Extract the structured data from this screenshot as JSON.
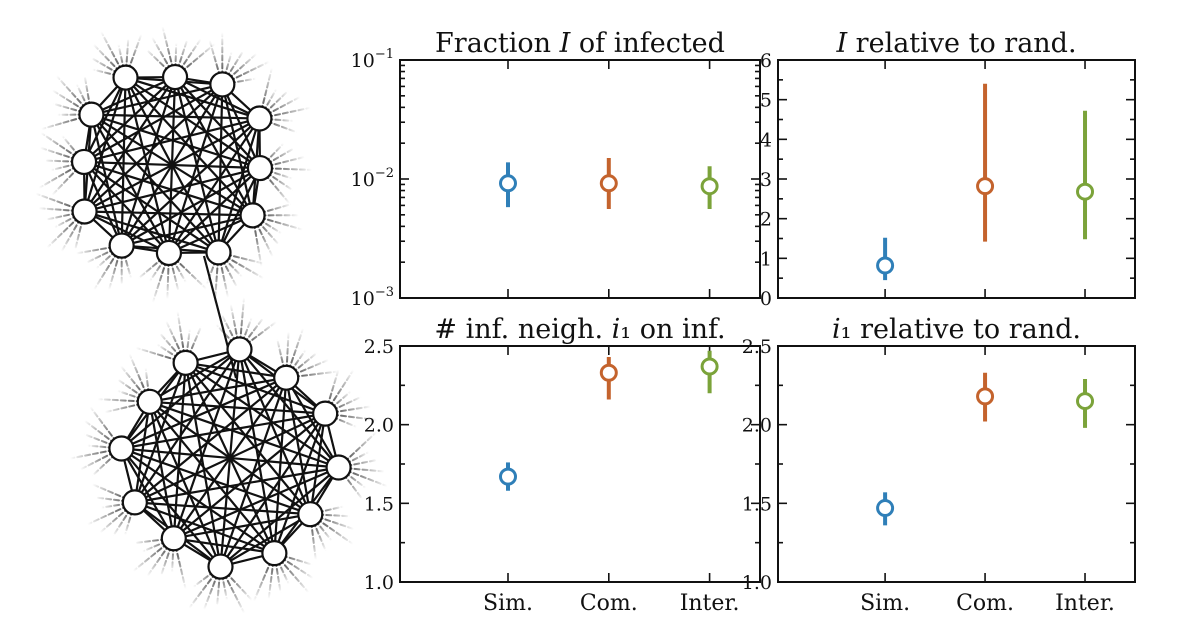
{
  "colors": {
    "Sim.": "#2f7fb8",
    "Com.": "#c4632d",
    "Inter.": "#7ba33a"
  },
  "chart_data": [
    {
      "type": "scatter",
      "panel": "top-left",
      "title": "Fraction 𝐼 of infected",
      "scale": "log",
      "ylim": [
        0.001,
        0.1
      ],
      "yticks": [
        {
          "value": 0.1,
          "base": "10",
          "exp": "−1"
        },
        {
          "value": 0.01,
          "base": "10",
          "exp": "−2"
        },
        {
          "value": 0.001,
          "base": "10",
          "exp": "−3"
        }
      ],
      "categories": [
        "Sim.",
        "Com.",
        "Inter."
      ],
      "show_xticks": false,
      "points": [
        {
          "category": "Sim.",
          "value": 0.0092,
          "lower": 0.0058,
          "upper": 0.0138
        },
        {
          "category": "Com.",
          "value": 0.0092,
          "lower": 0.0056,
          "upper": 0.015
        },
        {
          "category": "Inter.",
          "value": 0.0087,
          "lower": 0.0056,
          "upper": 0.0128
        }
      ]
    },
    {
      "type": "scatter",
      "panel": "top-right",
      "title": "𝐼 relative to rand.",
      "scale": "linear",
      "ylim": [
        0,
        6
      ],
      "yticks": [
        {
          "value": 6,
          "label": "6"
        },
        {
          "value": 5,
          "label": "5"
        },
        {
          "value": 4,
          "label": "4"
        },
        {
          "value": 3,
          "label": "3"
        },
        {
          "value": 2,
          "label": "2"
        },
        {
          "value": 1,
          "label": "1"
        },
        {
          "value": 0,
          "label": "0"
        }
      ],
      "categories": [
        "Sim.",
        "Com.",
        "Inter."
      ],
      "show_xticks": false,
      "points": [
        {
          "category": "Sim.",
          "value": 0.82,
          "lower": 0.45,
          "upper": 1.52
        },
        {
          "category": "Com.",
          "value": 2.82,
          "lower": 1.42,
          "upper": 5.4
        },
        {
          "category": "Inter.",
          "value": 2.68,
          "lower": 1.48,
          "upper": 4.72
        }
      ]
    },
    {
      "type": "scatter",
      "panel": "bottom-left",
      "title": "# inf. neigh. 𝑖₁ on inf.",
      "scale": "linear",
      "ylim": [
        1.0,
        2.5
      ],
      "yticks": [
        {
          "value": 2.5,
          "label": "2.5"
        },
        {
          "value": 2.0,
          "label": "2.0"
        },
        {
          "value": 1.5,
          "label": "1.5"
        },
        {
          "value": 1.0,
          "label": "1.0"
        }
      ],
      "categories": [
        "Sim.",
        "Com.",
        "Inter."
      ],
      "show_xticks": true,
      "points": [
        {
          "category": "Sim.",
          "value": 1.67,
          "lower": 1.58,
          "upper": 1.76
        },
        {
          "category": "Com.",
          "value": 2.33,
          "lower": 2.16,
          "upper": 2.43
        },
        {
          "category": "Inter.",
          "value": 2.37,
          "lower": 2.2,
          "upper": 2.47
        }
      ]
    },
    {
      "type": "scatter",
      "panel": "bottom-right",
      "title": "𝑖₁ relative to rand.",
      "scale": "linear",
      "ylim": [
        1.0,
        2.5
      ],
      "yticks": [
        {
          "value": 2.5,
          "label": "2.5"
        },
        {
          "value": 2.0,
          "label": "2.0"
        },
        {
          "value": 1.5,
          "label": "1.5"
        },
        {
          "value": 1.0,
          "label": "1.0"
        }
      ],
      "categories": [
        "Sim.",
        "Com.",
        "Inter."
      ],
      "show_xticks": true,
      "points": [
        {
          "category": "Sim.",
          "value": 1.47,
          "lower": 1.36,
          "upper": 1.57
        },
        {
          "category": "Com.",
          "value": 2.18,
          "lower": 2.02,
          "upper": 2.33
        },
        {
          "category": "Inter.",
          "value": 2.15,
          "lower": 1.98,
          "upper": 2.29
        }
      ]
    }
  ],
  "network": {
    "clusters": 2,
    "nodes_per_cluster": 12,
    "bridge_edges": 1
  }
}
